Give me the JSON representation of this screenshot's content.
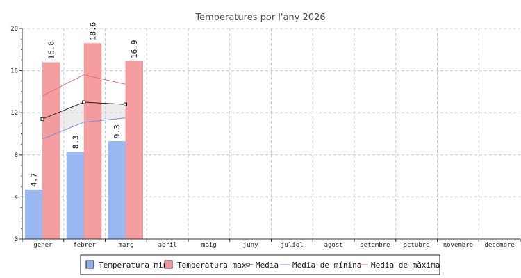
{
  "chart_data": {
    "type": "bar",
    "title": "Temperatures por l'any 2026",
    "categories": [
      "gener",
      "febrer",
      "març",
      "abril",
      "maig",
      "juny",
      "juliol",
      "agost",
      "setembre",
      "octubre",
      "novembre",
      "decembre"
    ],
    "ylim": [
      0,
      20
    ],
    "yticks": [
      0,
      4,
      8,
      12,
      16,
      20
    ],
    "grid": true,
    "legend_position": "bottom",
    "series": [
      {
        "name": "Temperatura min",
        "kind": "bar",
        "color": "#8fb0ef",
        "values": [
          4.7,
          8.3,
          9.3,
          null,
          null,
          null,
          null,
          null,
          null,
          null,
          null,
          null
        ]
      },
      {
        "name": "Temperatura max",
        "kind": "bar",
        "color": "#f39396",
        "values": [
          16.8,
          18.6,
          16.9,
          null,
          null,
          null,
          null,
          null,
          null,
          null,
          null,
          null
        ]
      },
      {
        "name": "Media",
        "kind": "line-marker",
        "color": "#222222",
        "values": [
          11.4,
          13.0,
          12.8,
          null,
          null,
          null,
          null,
          null,
          null,
          null,
          null,
          null
        ]
      },
      {
        "name": "Media de mínina",
        "kind": "line",
        "color": "#6f8fe8",
        "values": [
          9.5,
          11.1,
          11.5,
          null,
          null,
          null,
          null,
          null,
          null,
          null,
          null,
          null
        ]
      },
      {
        "name": "Media de màxima",
        "kind": "line",
        "color": "#e27070",
        "values": [
          13.6,
          15.6,
          14.7,
          null,
          null,
          null,
          null,
          null,
          null,
          null,
          null,
          null
        ]
      }
    ],
    "data_labels": {
      "min": [
        "4.7",
        "8.3",
        "9.3"
      ],
      "max": [
        "16.8",
        "18.6",
        "16.9"
      ]
    }
  }
}
